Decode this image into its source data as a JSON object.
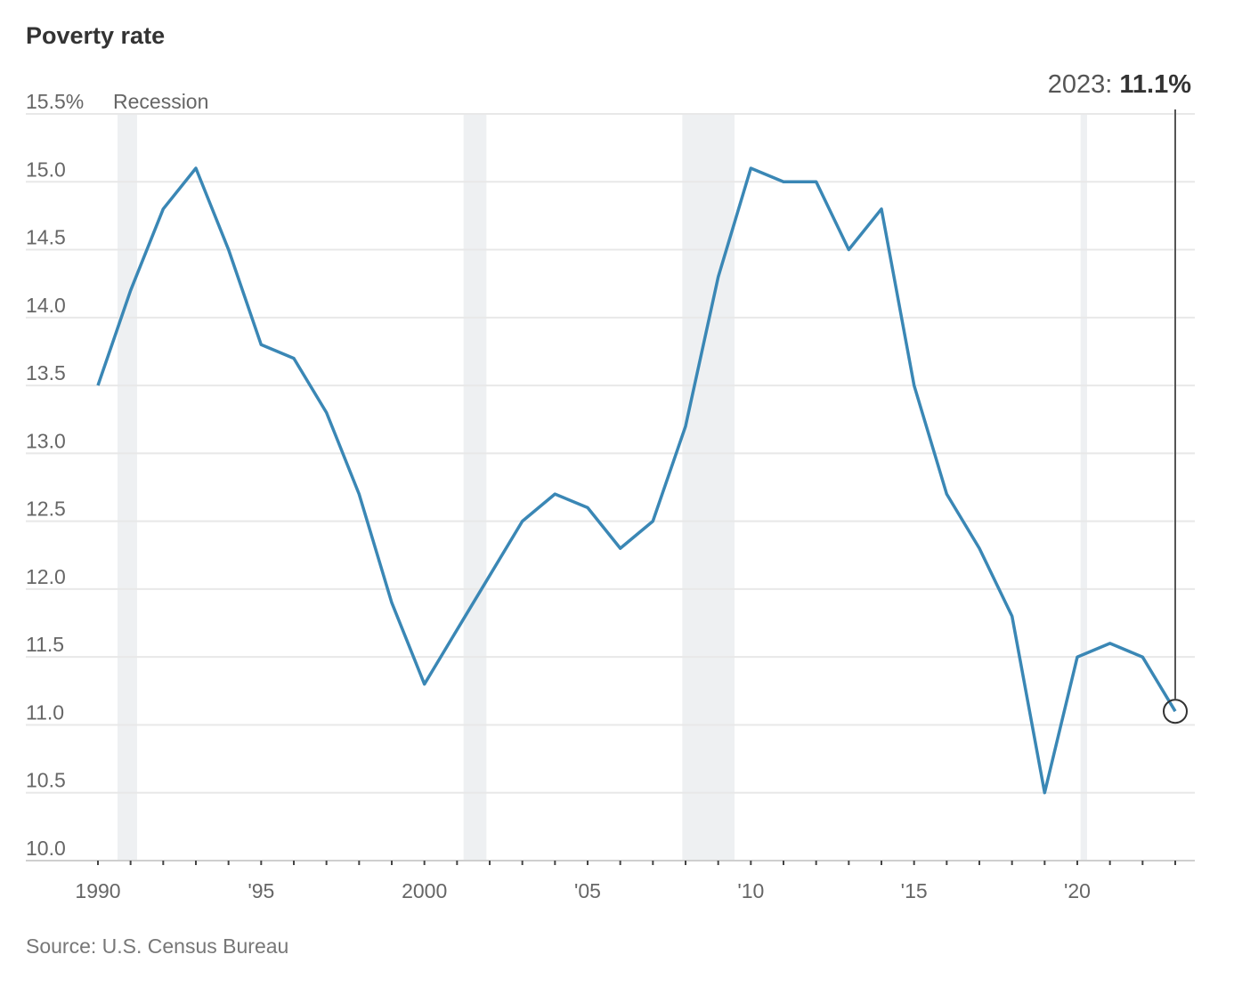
{
  "chart_data": {
    "type": "line",
    "title": "Poverty rate",
    "source": "Source: U.S. Census Bureau",
    "recession_label": "Recession",
    "annotation": {
      "year_label": "2023:",
      "value_label": "11.1%"
    },
    "xlim": [
      1990,
      2023
    ],
    "ylim": [
      10.0,
      15.5
    ],
    "y_ticks": [
      {
        "value": 15.5,
        "label": "15.5%"
      },
      {
        "value": 15.0,
        "label": "15.0"
      },
      {
        "value": 14.5,
        "label": "14.5"
      },
      {
        "value": 14.0,
        "label": "14.0"
      },
      {
        "value": 13.5,
        "label": "13.5"
      },
      {
        "value": 13.0,
        "label": "13.0"
      },
      {
        "value": 12.5,
        "label": "12.5"
      },
      {
        "value": 12.0,
        "label": "12.0"
      },
      {
        "value": 11.5,
        "label": "11.5"
      },
      {
        "value": 11.0,
        "label": "11.0"
      },
      {
        "value": 10.5,
        "label": "10.5"
      },
      {
        "value": 10.0,
        "label": "10.0"
      }
    ],
    "x_ticks": [
      {
        "value": 1990,
        "label": "1990"
      },
      {
        "value": 1995,
        "label": "'95"
      },
      {
        "value": 2000,
        "label": "2000"
      },
      {
        "value": 2005,
        "label": "'05"
      },
      {
        "value": 2010,
        "label": "'10"
      },
      {
        "value": 2015,
        "label": "'15"
      },
      {
        "value": 2020,
        "label": "'20"
      }
    ],
    "recessions": [
      [
        1990.6,
        1991.2
      ],
      [
        2001.2,
        2001.9
      ],
      [
        2007.9,
        2009.5
      ],
      [
        2020.1,
        2020.3
      ]
    ],
    "series": [
      {
        "name": "Poverty rate",
        "color": "#3a87b5",
        "x": [
          1990,
          1991,
          1992,
          1993,
          1994,
          1995,
          1996,
          1997,
          1998,
          1999,
          2000,
          2001,
          2002,
          2003,
          2004,
          2005,
          2006,
          2007,
          2008,
          2009,
          2010,
          2011,
          2012,
          2013,
          2014,
          2015,
          2016,
          2017,
          2018,
          2019,
          2020,
          2021,
          2022,
          2023
        ],
        "values": [
          13.5,
          14.2,
          14.8,
          15.1,
          14.5,
          13.8,
          13.7,
          13.3,
          12.7,
          11.9,
          11.3,
          11.7,
          12.1,
          12.5,
          12.7,
          12.6,
          12.3,
          12.5,
          13.2,
          14.3,
          15.1,
          15.0,
          15.0,
          14.5,
          14.8,
          13.5,
          12.7,
          12.3,
          11.8,
          10.5,
          11.5,
          11.6,
          11.5,
          11.1
        ]
      }
    ]
  }
}
